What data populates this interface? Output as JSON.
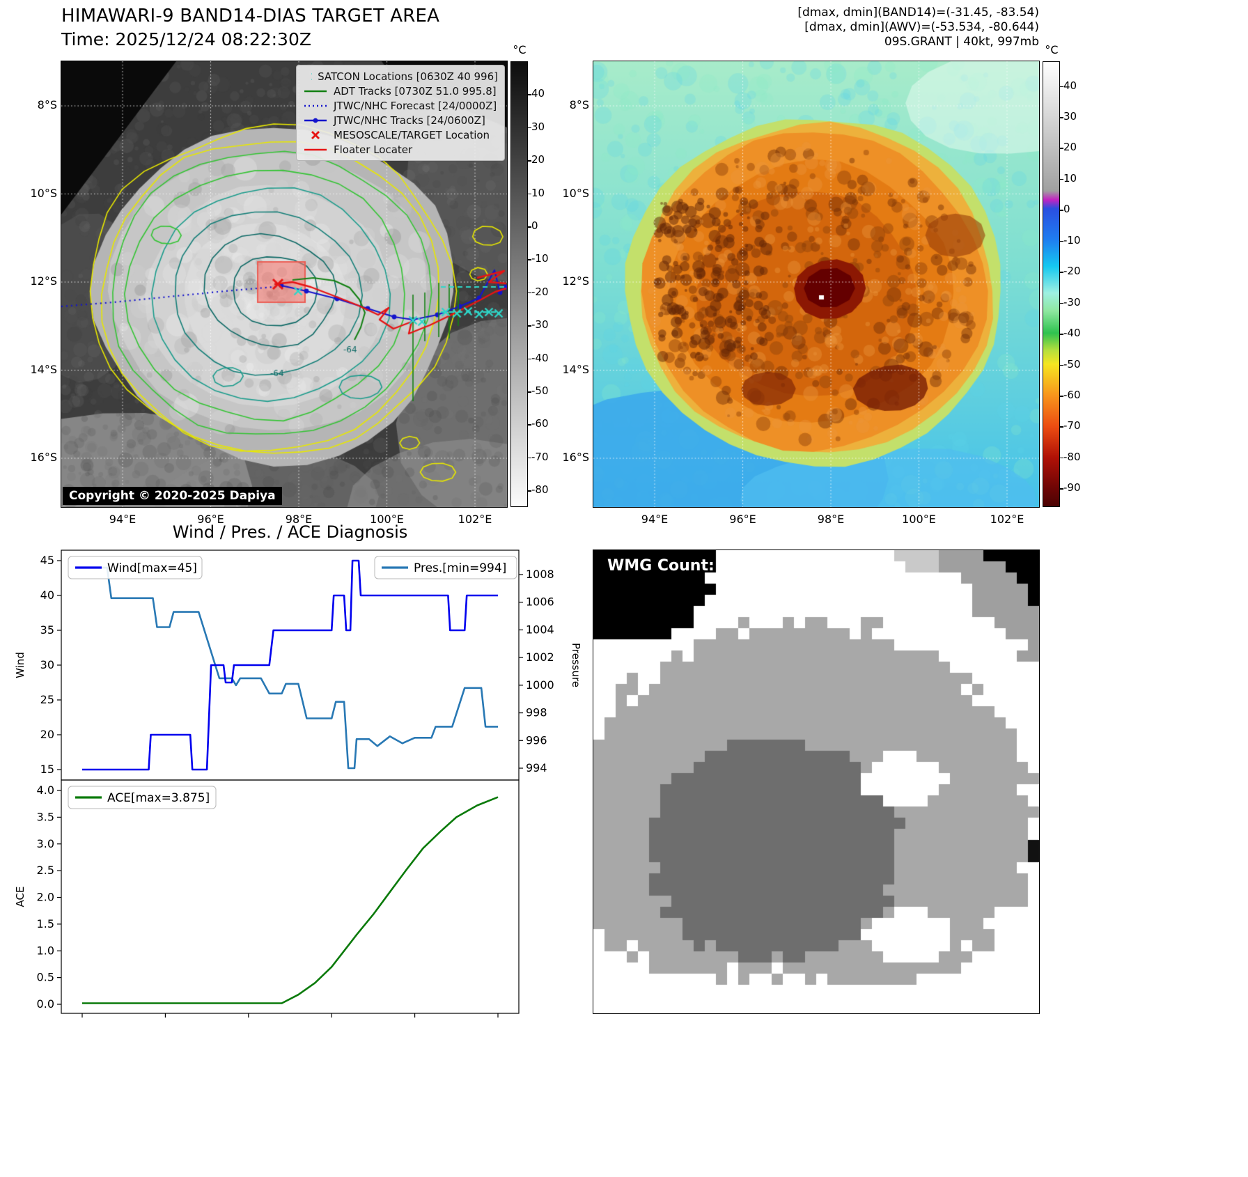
{
  "band14": {
    "title": "HIMAWARI-9 BAND14-DIAS TARGET AREA",
    "time_label": "Time: 2025/12/24 08:22:30Z",
    "copyright": "Copyright © 2020-2025 Dapiya",
    "colorbar_unit": "°C",
    "colorbar_ticks": [
      "40",
      "30",
      "20",
      "10",
      "0",
      "-10",
      "-20",
      "-30",
      "-40",
      "-50",
      "-60",
      "-70",
      "-80"
    ],
    "lat_ticks": [
      "8°S",
      "10°S",
      "12°S",
      "14°S",
      "16°S"
    ],
    "lon_ticks": [
      "94°E",
      "96°E",
      "98°E",
      "100°E",
      "102°E"
    ],
    "contour_labels": [
      "-64",
      "-64"
    ],
    "legend_items": [
      {
        "label": "SATCON Locations [0630Z 40 996]",
        "color": "#2fd6c8",
        "style": "x-marker"
      },
      {
        "label": "ADT Tracks [0730Z 51.0 995.8]",
        "color": "#128012",
        "style": "solid"
      },
      {
        "label": "JTWC/NHC Forecast [24/0000Z]",
        "color": "#1414cc",
        "style": "dotted"
      },
      {
        "label": "JTWC/NHC Tracks [24/0600Z]",
        "color": "#1414cc",
        "style": "solid-dot"
      },
      {
        "label": "MESOSCALE/TARGET Location",
        "color": "#e61414",
        "style": "x-marker"
      },
      {
        "label": "Floater Locater",
        "color": "#e61414",
        "style": "solid"
      }
    ]
  },
  "awv": {
    "annotations": [
      "[dmax, dmin](BAND14)=(-31.45, -83.54)",
      "[dmax, dmin](AWV)=(-53.534, -80.644)",
      "09S.GRANT | 40kt, 997mb"
    ],
    "colorbar_unit": "°C",
    "colorbar_ticks": [
      "40",
      "30",
      "20",
      "10",
      "0",
      "-10",
      "-20",
      "-30",
      "-40",
      "-50",
      "-60",
      "-70",
      "-80",
      "-90"
    ],
    "lat_ticks": [
      "8°S",
      "10°S",
      "12°S",
      "14°S",
      "16°S"
    ],
    "lon_ticks": [
      "94°E",
      "96°E",
      "98°E",
      "100°E",
      "102°E"
    ]
  },
  "wmg": {
    "count_label": "WMG Count: 0"
  },
  "diagnosis": {
    "title": "Wind / Pres. / ACE Diagnosis"
  },
  "colors": {
    "band14_colorbar": [
      [
        0,
        "#0d0d0d"
      ],
      [
        100,
        "#fbfbfb"
      ]
    ],
    "awv_colorbar": [
      [
        0,
        "#ffffff"
      ],
      [
        29,
        "#a0a0a0"
      ],
      [
        31,
        "#c224c2"
      ],
      [
        33,
        "#2a4fe0"
      ],
      [
        40,
        "#1f7df0"
      ],
      [
        46,
        "#15c8f0"
      ],
      [
        52,
        "#9ef0e2"
      ],
      [
        56,
        "#8fe8a0"
      ],
      [
        61,
        "#2fc24f"
      ],
      [
        65,
        "#b8e03c"
      ],
      [
        68,
        "#f5e621"
      ],
      [
        75,
        "#f8951c"
      ],
      [
        82,
        "#ec4d12"
      ],
      [
        89,
        "#b01106"
      ],
      [
        96,
        "#6d0505"
      ],
      [
        100,
        "#4a0202"
      ]
    ],
    "wind_line": "#0000ee",
    "pres_line": "#2878b4",
    "ace_line": "#0a7a0a",
    "target_box": "#fa7369",
    "forecast_track": "#1414cc",
    "floater_track": "#e61414",
    "adt_track": "#128012",
    "satcon_marker": "#2fd6c8"
  },
  "chart_data": [
    {
      "type": "line",
      "title": "Wind / Pres. / ACE Diagnosis",
      "x_range": [
        0,
        100
      ],
      "x_ticks_labeled": false,
      "grid": false,
      "series": [
        {
          "name": "Wind[max=45]",
          "color": "#0000ee",
          "axis": "left",
          "ylabel": "Wind",
          "ylim": [
            13.5,
            46.5
          ],
          "yticks": [
            45,
            40,
            35,
            30,
            25,
            20,
            15
          ],
          "points": [
            [
              0,
              15
            ],
            [
              16,
              15
            ],
            [
              16.5,
              20
            ],
            [
              26,
              20
            ],
            [
              26.5,
              15
            ],
            [
              30,
              15
            ],
            [
              31,
              30
            ],
            [
              34,
              30
            ],
            [
              34.5,
              27.5
            ],
            [
              36,
              27.5
            ],
            [
              36.5,
              30
            ],
            [
              45,
              30
            ],
            [
              46,
              35
            ],
            [
              60,
              35
            ],
            [
              60.5,
              40
            ],
            [
              63,
              40
            ],
            [
              63.5,
              35
            ],
            [
              64.5,
              35
            ],
            [
              65,
              45
            ],
            [
              66.5,
              45
            ],
            [
              67,
              40
            ],
            [
              88,
              40
            ],
            [
              88.5,
              35
            ],
            [
              92,
              35
            ],
            [
              92.5,
              40
            ],
            [
              100,
              40
            ]
          ]
        },
        {
          "name": "Pres.[min=994]",
          "color": "#2878b4",
          "axis": "right",
          "ylabel": "Pressure",
          "ylim": [
            993.2,
            1009.8
          ],
          "yticks": [
            1008,
            1006,
            1004,
            1002,
            1000,
            998,
            996,
            994
          ],
          "points": [
            [
              0,
              1008.5
            ],
            [
              6,
              1008.5
            ],
            [
              7,
              1006.3
            ],
            [
              17,
              1006.3
            ],
            [
              18,
              1004.2
            ],
            [
              21,
              1004.2
            ],
            [
              22,
              1005.3
            ],
            [
              28,
              1005.3
            ],
            [
              33,
              1000.5
            ],
            [
              36,
              1000.5
            ],
            [
              37,
              1000
            ],
            [
              38,
              1000.5
            ],
            [
              43,
              1000.5
            ],
            [
              45,
              999.4
            ],
            [
              48,
              999.4
            ],
            [
              49,
              1000.1
            ],
            [
              52,
              1000.1
            ],
            [
              54,
              997.6
            ],
            [
              60,
              997.6
            ],
            [
              61,
              998.8
            ],
            [
              63,
              998.8
            ],
            [
              64,
              994
            ],
            [
              65.5,
              994
            ],
            [
              66,
              996.1
            ],
            [
              69,
              996.1
            ],
            [
              71,
              995.6
            ],
            [
              74,
              996.3
            ],
            [
              77,
              995.8
            ],
            [
              80,
              996.2
            ],
            [
              84,
              996.2
            ],
            [
              85,
              997
            ],
            [
              89,
              997
            ],
            [
              92,
              999.8
            ],
            [
              96,
              999.8
            ],
            [
              97,
              997
            ],
            [
              100,
              997
            ]
          ]
        }
      ],
      "legend": [
        "Wind[max=45]",
        "Pres.[min=994]"
      ],
      "legend_position": "upper-left / upper-right"
    },
    {
      "type": "line",
      "x_range": [
        0,
        100
      ],
      "x_ticks_labeled": false,
      "grid": false,
      "series": [
        {
          "name": "ACE[max=3.875]",
          "color": "#0a7a0a",
          "axis": "left",
          "ylabel": "ACE",
          "ylim": [
            -0.19,
            4.19
          ],
          "yticks": [
            4.0,
            3.5,
            3.0,
            2.5,
            2.0,
            1.5,
            1.0,
            0.5,
            0.0
          ],
          "points": [
            [
              0,
              0.02
            ],
            [
              48,
              0.02
            ],
            [
              52,
              0.18
            ],
            [
              56,
              0.4
            ],
            [
              60,
              0.7
            ],
            [
              63,
              1.0
            ],
            [
              66,
              1.3
            ],
            [
              70,
              1.68
            ],
            [
              74,
              2.1
            ],
            [
              78,
              2.52
            ],
            [
              82,
              2.92
            ],
            [
              86,
              3.22
            ],
            [
              90,
              3.5
            ],
            [
              95,
              3.72
            ],
            [
              100,
              3.875
            ]
          ]
        }
      ],
      "legend": [
        "ACE[max=3.875]"
      ],
      "legend_position": "upper-left"
    }
  ]
}
